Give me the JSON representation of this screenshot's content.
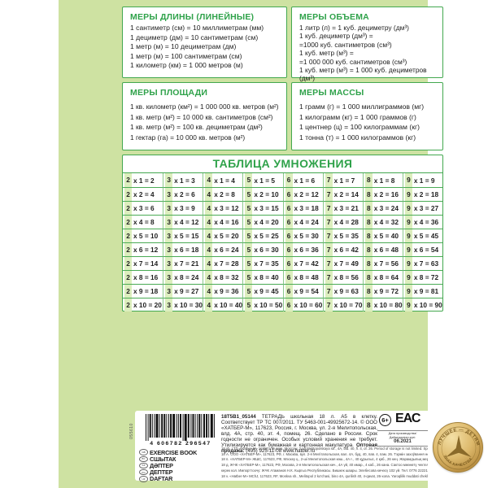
{
  "page": {
    "paper_color": "#cee2a2",
    "accent_green": "#2fa24a",
    "border_green": "#43a84f",
    "stripe_green": "#dceebd"
  },
  "length_box": {
    "title": "МЕРЫ ДЛИНЫ (ЛИНЕЙНЫЕ)",
    "lines": [
      "1 сантиметр (см) = 10 миллиметрам (мм)",
      "1 дециметр (дм) = 10 сантиметрам (см)",
      "1 метр (м) = 10 дециметрам (дм)",
      "1 метр (м) = 100 сантиметрам (см)",
      "1 километр (км) = 1 000 метров (м)"
    ]
  },
  "volume_box": {
    "title": "МЕРЫ ОБЪЕМА",
    "lines": [
      "1 литр (л) = 1 куб. дециметру (дм³)",
      "1 куб. дециметр (дм³) =",
      "=1000 куб. сантиметров (см³)",
      "1 куб. метр (м³) =",
      "=1 000 000 куб. сантиметров (см³)",
      "1 куб. метр (м³) = 1 000 куб. дециметров (дм³)"
    ]
  },
  "area_box": {
    "title": "МЕРЫ ПЛОЩАДИ",
    "lines": [
      "1 кв. километр (км²) = 1 000 000 кв. метров (м²)",
      "1 кв. метр (м²) = 10 000 кв. сантиметров (см²)",
      "1 кв. метр (м²) = 100 кв. дециметрам (дм²)",
      "1 гектар (га) = 10 000 кв. метров (м²)"
    ]
  },
  "mass_box": {
    "title": "МЕРЫ МАССЫ",
    "lines": [
      "1 грамм (г) = 1 000 миллиграммов (мг)",
      "1 килограмм (кг) = 1 000 граммов (г)",
      "1 центнер (ц) = 100 килограммам (кг)",
      "1 тонна (т) = 1 000 килограммов (кг)"
    ]
  },
  "multiplication": {
    "title": "ТАБЛИЦА УМНОЖЕНИЯ",
    "rows": [
      [
        "2 x 1 = 2",
        "3 x 1 = 3",
        "4 x 1 = 4",
        "5 x 1 = 5",
        "6 x 1 = 6",
        "7 x 1 = 7",
        "8 x 1 = 8",
        "9 x 1 = 9"
      ],
      [
        "2 x 2 = 4",
        "3 x 2 = 6",
        "4 x 2 = 8",
        "5 x 2 = 10",
        "6 x 2 = 12",
        "7 x 2 = 14",
        "8 x 2 = 16",
        "9 x 2 = 18"
      ],
      [
        "2 x 3 = 6",
        "3 x 3 = 9",
        "4 x 3 = 12",
        "5 x 3 = 15",
        "6 x 3 = 18",
        "7 x 3 = 21",
        "8 x 3 = 24",
        "9 x 3 = 27"
      ],
      [
        "2 x 4 = 8",
        "3 x 4 = 12",
        "4 x 4 = 16",
        "5 x 4 = 20",
        "6 x 4 = 24",
        "7 x 4 = 28",
        "8 x 4 = 32",
        "9 x 4 = 36"
      ],
      [
        "2 x 5 = 10",
        "3 x 5 = 15",
        "4 x 5 = 20",
        "5 x 5 = 25",
        "6 x 5 = 30",
        "7 x 5 = 35",
        "8 x 5 = 40",
        "9 x 5 = 45"
      ],
      [
        "2 x 6 = 12",
        "3 x 6 = 18",
        "4 x 6 = 24",
        "5 x 6 = 30",
        "6 x 6 = 36",
        "7 x 6 = 42",
        "8 x 6 = 48",
        "9 x 6 = 54"
      ],
      [
        "2 x 7 = 14",
        "3 x 7 = 21",
        "4 x 7 = 28",
        "5 x 7 = 35",
        "6 x 7 = 42",
        "7 x 7 = 49",
        "8 x 7 = 56",
        "9 x 7 = 63"
      ],
      [
        "2 x 8 = 16",
        "3 x 8 = 24",
        "4 x 8 = 32",
        "5 x 8 = 40",
        "6 x 8 = 48",
        "7 x 8 = 56",
        "8 x 8 = 64",
        "9 x 8 = 72"
      ],
      [
        "2 x 9 = 18",
        "3 x 9 = 27",
        "4 x 9 = 36",
        "5 x 9 = 45",
        "6 x 9 = 54",
        "7 x 9 = 63",
        "8 x 9 = 72",
        "9 x 9 = 81"
      ],
      [
        "2 x 10 = 20",
        "3 x 10 = 30",
        "4 x 10 = 40",
        "5 x 10 = 50",
        "6 x 10 = 60",
        "7 x 10 = 70",
        "8 x 10 = 80",
        "9 x 10 = 90"
      ]
    ]
  },
  "info_panel": {
    "serial_vertical": "055610",
    "barcode_digits": "4 606782 296547",
    "languages": [
      {
        "code": "GB",
        "label": "EXERCISE BOOK"
      },
      {
        "code": "BY",
        "label": "СШЫТАК"
      },
      {
        "code": "KZ",
        "label": "ДӘПТЕР"
      },
      {
        "code": "KG",
        "label": "ДЕПТЕР"
      },
      {
        "code": "UZ",
        "label": "DAFTAR"
      }
    ],
    "description_bold": "18Т5В1_05144",
    "description_text": " ТЕТРАДЬ школьная 18 л. А5 в клетку. Соответствует ТР ТС 007/2011. ТУ 5463-001-49925672-14. © ООО «ХАТБЕР-М», 117623, Россия, г. Москва, ул. 2-я Мелитопольская, влд. 4А, стр. 40, эт. 4, помещ. 26. Сделано в России. Срок годности не ограничен. Особых условий хранения не требует. Утилизируется как бумажная и картонная макулатура. ",
    "wholesale_bold": "Оптовая продажа:",
    "wholesale_rest": " (495) 925-11-08 www.hatber.ru",
    "age_mark": "6+",
    "eac_mark": "ЕАС",
    "date_label_1": "Дата производства/",
    "date_label_2": "Дайындалған күні:",
    "date_value": "06.2021",
    "fine_print": [
      "18 sh. LTD «Hatber-M» 117623, Russia, Moscow, 2 nd Melitopolskaya str., 4A, bld. 40, fl. 4, of. 26. Period of storage is not limited. Special storage conditions are not required.",
      "18 А. ООО «ХАТБЕР-М», 117623, РФ, г. Масква, вул. 2-я Мелітапольская, вал. 4А, буд. 40, пав. 4, пам. 26. Тэрмін захоўвання не абмежаваны. Асаблівых умоў захоўвання не патрабуе. Імпарцёр у Рэспубліку Беларусь: ТАА «Зопет», г. Мінск, вул. М. Танка, д. 36, к. 2. Тэл. +375 (17) 250-5555.",
      "18 п. «ХАТБЕР-М» ЖШС, 117623, РФ, Мәскеу қ., 2-ші Мелитопольская көш., 4А ғ., 40 құрылыс, 4 қаб., 26 кең. Жарамдылық мерзімі шектелмеген. Сақтаудың арнайы шарттарын қажет етпейді. Ресейде өндірілген. Импорттаушы: «ХАТБЕР-Қазақстан» ЖШС. Мекенжайы: Қазақстан, 050000, Алматы қ., Жібек Жолы даңғылы, 50/2/39, 3 блок. Тел. (727) 335-6-335 www.hatber.kz",
      "18 д. ЖЧК «ХАТБЕР-М», 117623, РФ, Москва, 2-я Мелитопольская көч., 4А үй, 40 имар., 4 каб., 26 кана. Сактоо мөөнөтү чектелген эмес. Өзгөчө сактоо шарттары",
      "керек кол. Импорттоочу: ЖЧК Атаманов Н.К. Кыргыз Республикасы. Бишкек шаары. Элебесова көчөсү 102 үй. Тел: 0776 222212.",
      "18 v. «Hatber-M» MChJ, 117623, RF, Moskva sh., Melitopol 2 ko'chasi, bino 4A, qurilish 40, 4-qavat, 26-xona. Yaroqlilik muddati cheklanmagan. Maxsus saqlash sharoitlari yo'q."
    ]
  },
  "medal": {
    "top_text": "ЛУЧШЕЕ — ДЕТЯМ",
    "bottom_text": "ЗНАК КАЧЕСТВА"
  }
}
